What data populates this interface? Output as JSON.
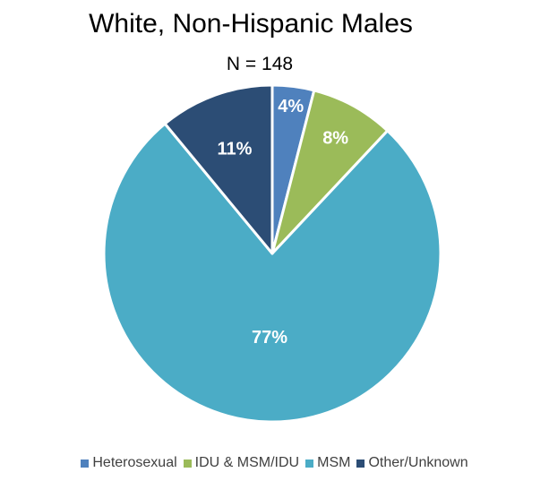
{
  "chart_data": {
    "type": "pie",
    "title": "White, Non-Hispanic Males",
    "subtitle": "N = 148",
    "categories": [
      "Heterosexual",
      "IDU & MSM/IDU",
      "MSM",
      "Other/Unknown"
    ],
    "values": [
      4,
      8,
      77,
      11
    ],
    "labels": [
      "4%",
      "8%",
      "77%",
      "11%"
    ],
    "colors": [
      "#4f81bd",
      "#9bbb59",
      "#4bacc6",
      "#2c4d75"
    ],
    "legend_position": "bottom"
  }
}
